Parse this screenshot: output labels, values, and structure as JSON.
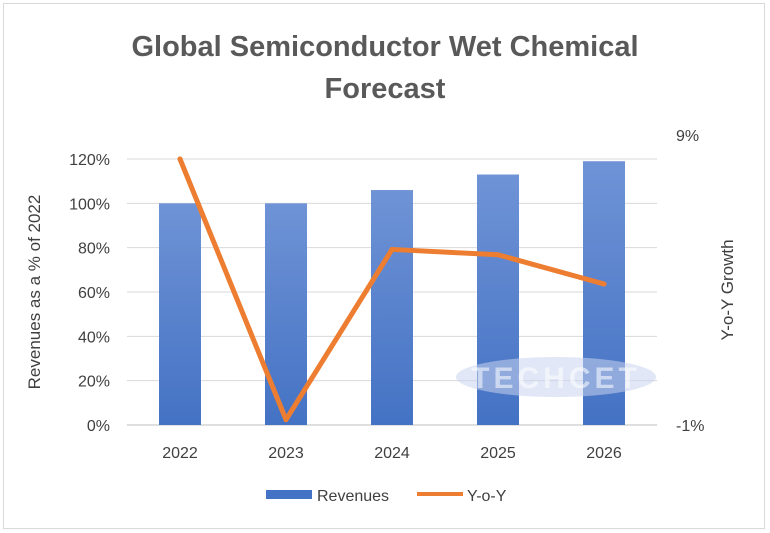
{
  "chart_data": {
    "type": "bar",
    "title_lines": [
      "Global Semiconductor Wet Chemical",
      "Forecast"
    ],
    "categories": [
      "2022",
      "2023",
      "2024",
      "2025",
      "2026"
    ],
    "series": [
      {
        "name": "Revenues",
        "type": "bar",
        "axis": "left",
        "values": [
          1.0,
          1.0,
          1.06,
          1.13,
          1.19
        ],
        "color": "#4472c4"
      },
      {
        "name": "Y-o-Y",
        "type": "line",
        "axis": "right",
        "values": [
          9.0,
          -0.8,
          5.6,
          5.4,
          4.3
        ],
        "color": "#ed7d31"
      }
    ],
    "ylabel": "Revenues as a % of 2022",
    "y2label": "Y-o-Y Growth",
    "ylim": [
      0,
      1.2
    ],
    "yticks": [
      "0%",
      "20%",
      "40%",
      "60%",
      "80%",
      "100%",
      "120%"
    ],
    "y2lim": [
      -1,
      9
    ],
    "y2ticks": [
      "-1%",
      "9%"
    ],
    "grid": true,
    "legend_position": "bottom",
    "watermark": "TECHCET"
  }
}
